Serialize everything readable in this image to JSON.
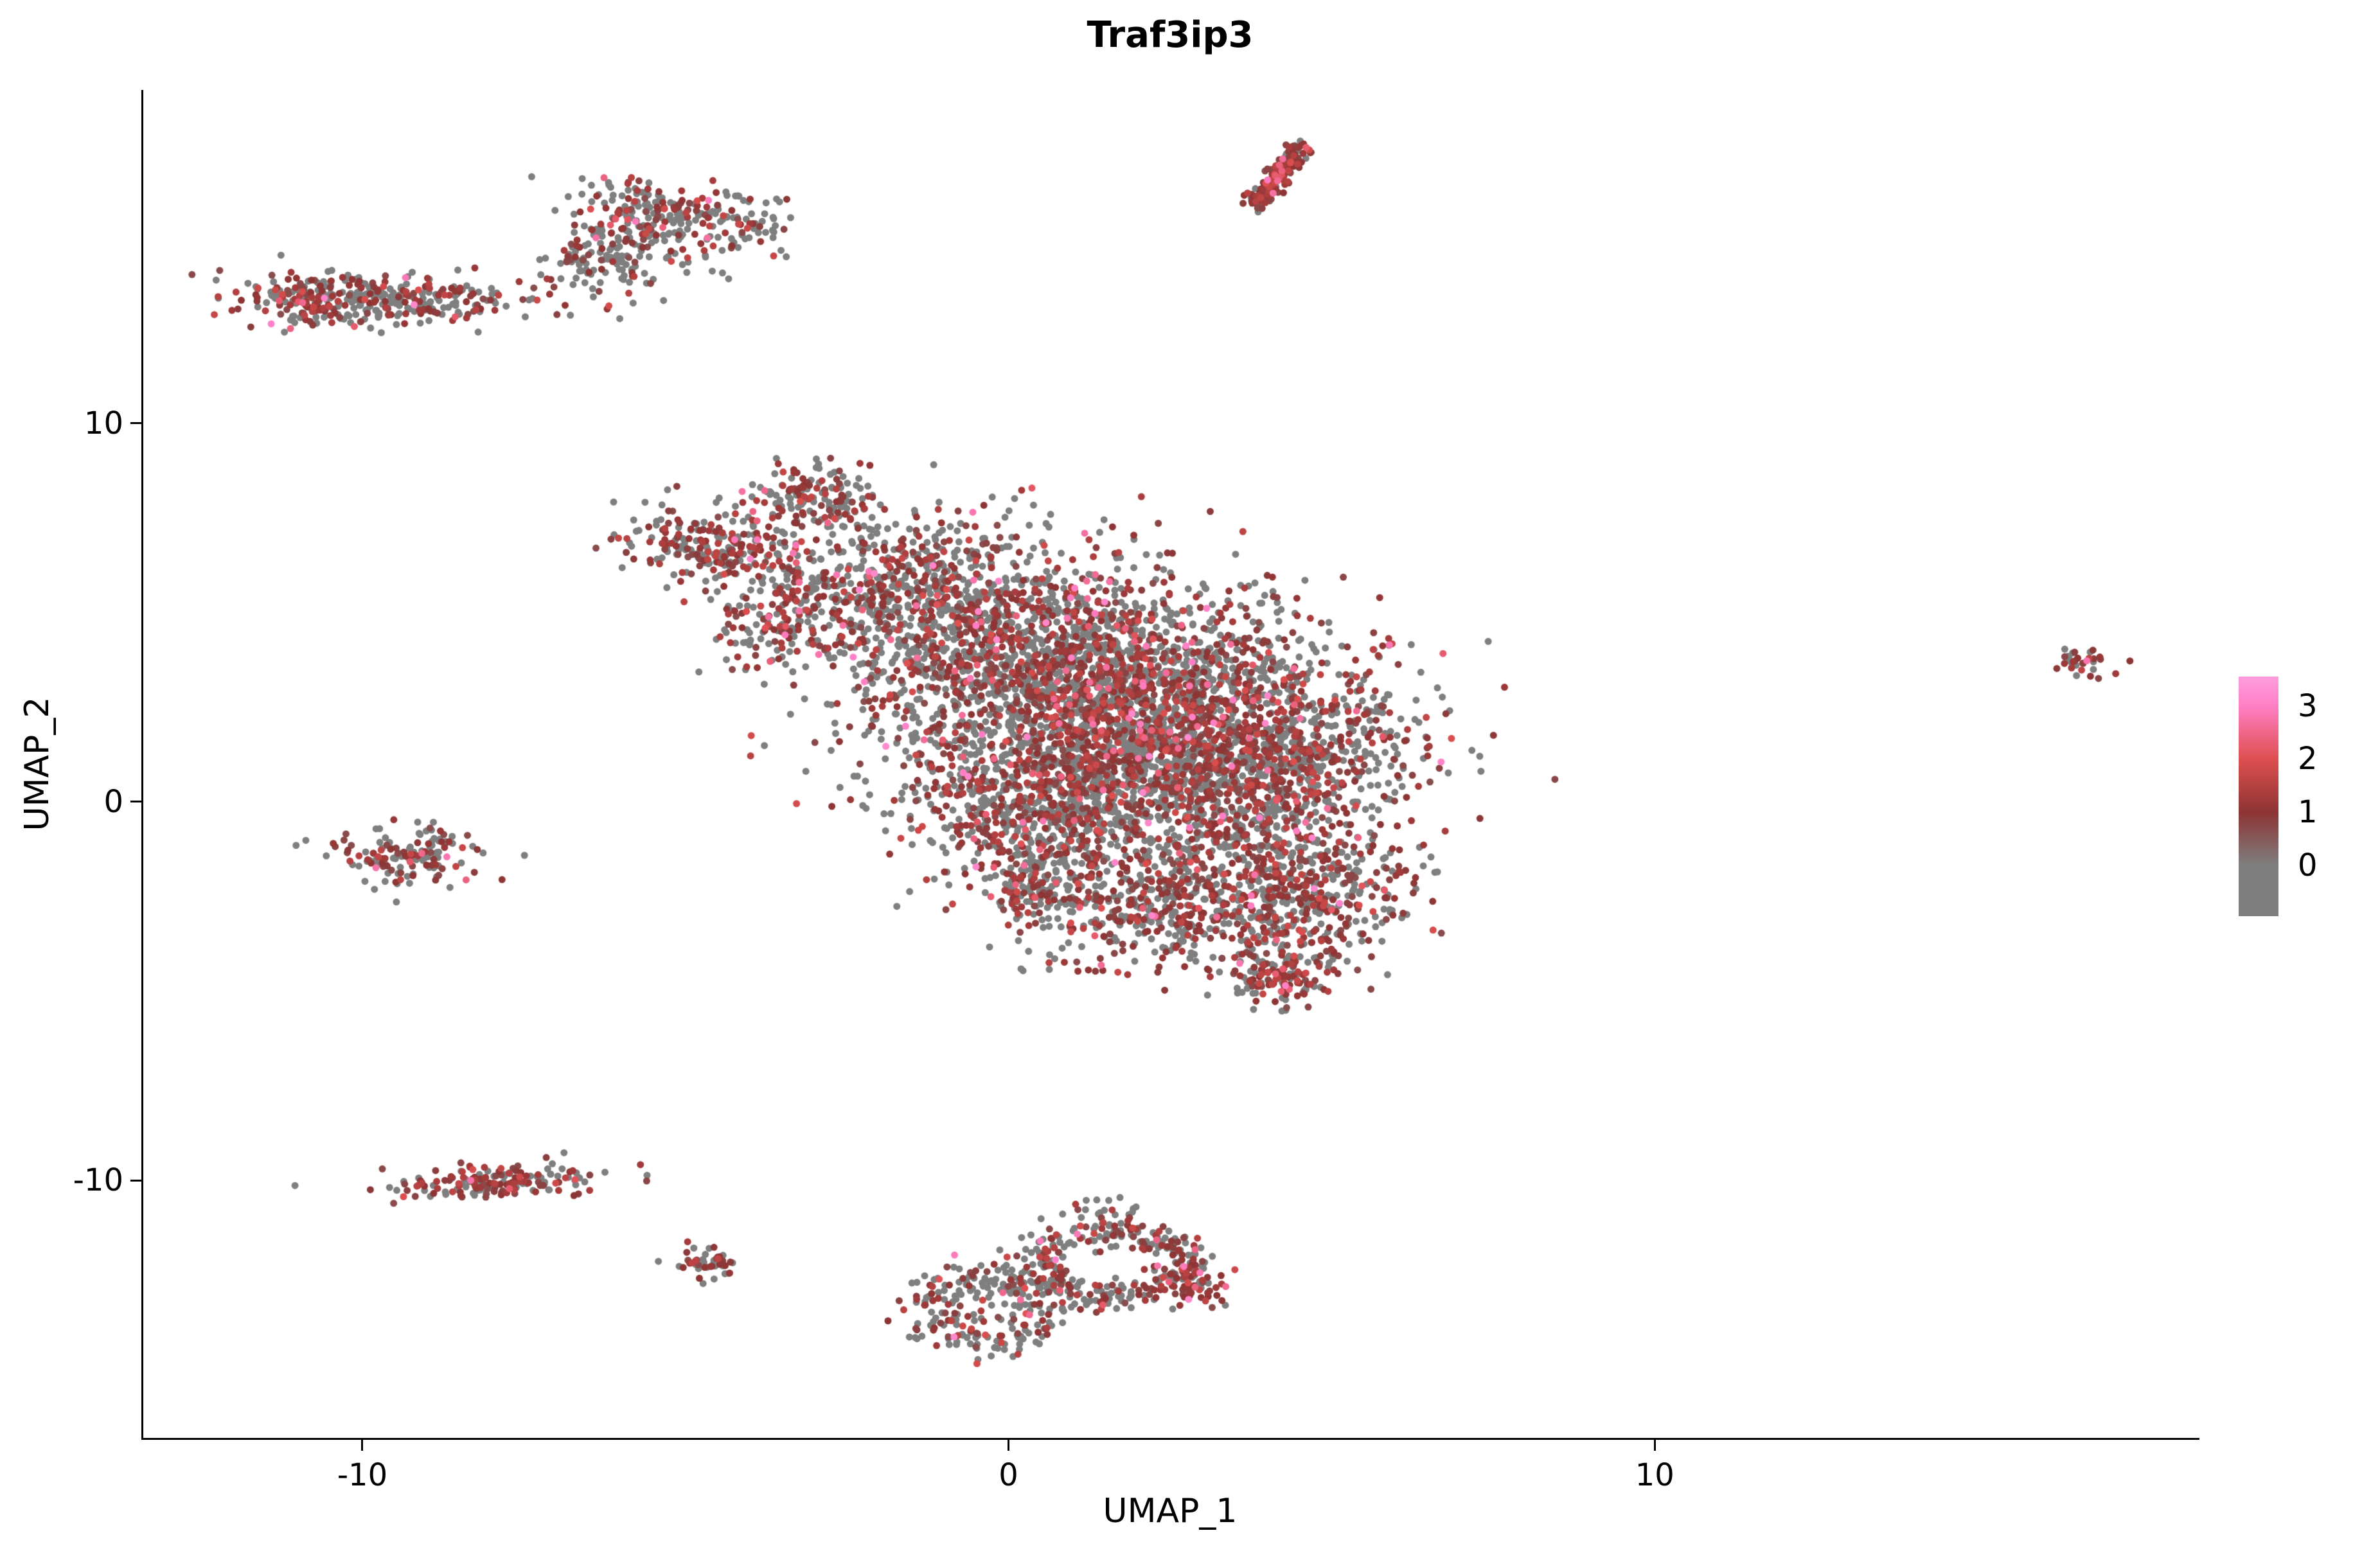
{
  "chart_data": {
    "type": "scatter",
    "title": "Traf3ip3",
    "xlabel": "UMAP_1",
    "ylabel": "UMAP_2",
    "xlim": [
      -13.4,
      18.4
    ],
    "ylim": [
      -16.8,
      18.8
    ],
    "x_ticks": [
      -10,
      0,
      10
    ],
    "x_tick_labels": [
      "-10",
      "0",
      "10"
    ],
    "y_ticks": [
      10,
      0,
      -10
    ],
    "y_tick_labels": [
      "10",
      "0",
      "-10"
    ],
    "grid": false,
    "point_radius_px": 5.5,
    "seed": 1337,
    "colorscale": {
      "stops": [
        [
          0,
          "#7F7F7F"
        ],
        [
          1,
          "#8D3434"
        ],
        [
          2,
          "#DE4F4F"
        ],
        [
          3,
          "#FF7FC6"
        ],
        [
          3.5,
          "#FF9BDC"
        ]
      ],
      "zero_color": "#7F7F7F",
      "low_color": "#8D3434",
      "mid_color": "#DE4F4F",
      "high_color": "#FF7FC6"
    },
    "legend": {
      "position": "right",
      "labels": [
        "3",
        "2",
        "1",
        "0"
      ],
      "label_values": [
        3,
        2,
        1,
        0
      ],
      "bar_range": [
        3.55,
        -0.95
      ]
    },
    "clusters": [
      {
        "name": "top-streak",
        "shape": "streak",
        "x1": 3.85,
        "y1": 15.8,
        "x2": 4.55,
        "y2": 17.35,
        "thickness": 0.1,
        "n": 170,
        "red_frac": 0.85
      },
      {
        "name": "topleft-main",
        "shape": "gauss",
        "cx": -5.1,
        "cy": 15.4,
        "sx": 0.85,
        "sy": 0.45,
        "rot": -0.2,
        "n": 260,
        "red_frac": 0.35
      },
      {
        "name": "topleft-tail",
        "shape": "gauss",
        "cx": -6.1,
        "cy": 14.3,
        "sx": 0.55,
        "sy": 0.55,
        "rot": 0.4,
        "n": 140,
        "red_frac": 0.3
      },
      {
        "name": "farleft-band",
        "shape": "gauss",
        "cx": -9.8,
        "cy": 13.3,
        "sx": 1.1,
        "sy": 0.33,
        "rot": -0.05,
        "n": 300,
        "red_frac": 0.4
      },
      {
        "name": "farleft-band-end",
        "shape": "gauss",
        "cx": -10.9,
        "cy": 13.2,
        "sx": 0.35,
        "sy": 0.3,
        "rot": 0,
        "n": 80,
        "red_frac": 0.5
      },
      {
        "name": "main-top-spike",
        "shape": "gauss",
        "cx": -3.1,
        "cy": 8.1,
        "sx": 0.5,
        "sy": 0.45,
        "rot": 0,
        "n": 150,
        "red_frac": 0.45
      },
      {
        "name": "main-beak",
        "shape": "gauss",
        "cx": -4.5,
        "cy": 6.7,
        "sx": 0.85,
        "sy": 0.5,
        "rot": -0.5,
        "n": 260,
        "red_frac": 0.5
      },
      {
        "name": "main-beak-streak",
        "shape": "gauss",
        "cx": -3.5,
        "cy": 4.8,
        "sx": 0.45,
        "sy": 0.7,
        "rot": -0.7,
        "n": 130,
        "red_frac": 0.5
      },
      {
        "name": "main-upperleft",
        "shape": "gauss",
        "cx": -1.6,
        "cy": 5.6,
        "sx": 1.1,
        "sy": 1.1,
        "rot": 0,
        "n": 550,
        "red_frac": 0.4
      },
      {
        "name": "main-upper",
        "shape": "gauss",
        "cx": 0.4,
        "cy": 4.0,
        "sx": 1.5,
        "sy": 1.4,
        "rot": 0,
        "n": 1100,
        "red_frac": 0.42
      },
      {
        "name": "main-center",
        "shape": "gauss",
        "cx": 2.1,
        "cy": 2.6,
        "sx": 1.7,
        "sy": 1.4,
        "rot": 0,
        "n": 1500,
        "red_frac": 0.42
      },
      {
        "name": "main-right",
        "shape": "gauss",
        "cx": 3.7,
        "cy": 0.9,
        "sx": 1.3,
        "sy": 1.2,
        "rot": 0,
        "n": 950,
        "red_frac": 0.45
      },
      {
        "name": "main-lowerleft",
        "shape": "gauss",
        "cx": 1.2,
        "cy": 0.4,
        "sx": 1.5,
        "sy": 1.1,
        "rot": 0,
        "n": 850,
        "red_frac": 0.4
      },
      {
        "name": "main-lobe-right",
        "shape": "gauss",
        "cx": 4.5,
        "cy": -2.3,
        "sx": 0.9,
        "sy": 1.0,
        "rot": 0,
        "n": 480,
        "red_frac": 0.5
      },
      {
        "name": "main-lobe-bottom",
        "shape": "gauss",
        "cx": 2.3,
        "cy": -2.7,
        "sx": 1.1,
        "sy": 0.85,
        "rot": 0,
        "n": 480,
        "red_frac": 0.5
      },
      {
        "name": "main-left-ext",
        "shape": "gauss",
        "cx": 0.3,
        "cy": -0.9,
        "sx": 0.8,
        "sy": 0.8,
        "rot": 0,
        "n": 230,
        "red_frac": 0.4
      },
      {
        "name": "main-small-tail",
        "shape": "gauss",
        "cx": 0.3,
        "cy": -2.3,
        "sx": 0.3,
        "sy": 0.4,
        "rot": 0,
        "n": 70,
        "red_frac": 0.5
      },
      {
        "name": "main-bottom-tip",
        "shape": "gauss",
        "cx": 4.2,
        "cy": -4.6,
        "sx": 0.45,
        "sy": 0.4,
        "rot": 0,
        "n": 150,
        "red_frac": 0.6
      },
      {
        "name": "left-mid",
        "shape": "gauss",
        "cx": -9.3,
        "cy": -1.4,
        "sx": 0.55,
        "sy": 0.4,
        "rot": 0,
        "n": 140,
        "red_frac": 0.5
      },
      {
        "name": "left-low",
        "shape": "gauss",
        "cx": -7.9,
        "cy": -10.0,
        "sx": 0.8,
        "sy": 0.22,
        "rot": 0.08,
        "n": 170,
        "red_frac": 0.6
      },
      {
        "name": "tiny-low",
        "shape": "gauss",
        "cx": -4.7,
        "cy": -12.1,
        "sx": 0.22,
        "sy": 0.2,
        "rot": 0,
        "n": 45,
        "red_frac": 0.6
      },
      {
        "name": "bottom-ring-left",
        "shape": "ring",
        "cx": -0.35,
        "cy": -13.4,
        "r": 0.9,
        "ax": 1.0,
        "ay": 0.95,
        "thickness": 0.3,
        "n": 240,
        "red_frac": 0.35
      },
      {
        "name": "bottom-ring-right",
        "shape": "ring",
        "cx": 1.6,
        "cy": -12.2,
        "r": 1.1,
        "ax": 1.0,
        "ay": 0.8,
        "thickness": 0.25,
        "n": 300,
        "red_frac": 0.4
      },
      {
        "name": "bottom-red-patch",
        "shape": "gauss",
        "cx": 2.9,
        "cy": -12.7,
        "sx": 0.25,
        "sy": 0.3,
        "rot": 0,
        "n": 60,
        "red_frac": 0.8
      },
      {
        "name": "bottom-top-dots",
        "shape": "gauss",
        "cx": 1.5,
        "cy": -10.9,
        "sx": 0.35,
        "sy": 0.25,
        "rot": 0,
        "n": 20,
        "red_frac": 0.3
      },
      {
        "name": "far-right",
        "shape": "gauss",
        "cx": 16.6,
        "cy": 3.7,
        "sx": 0.28,
        "sy": 0.2,
        "rot": -0.3,
        "n": 32,
        "red_frac": 0.7
      }
    ]
  }
}
